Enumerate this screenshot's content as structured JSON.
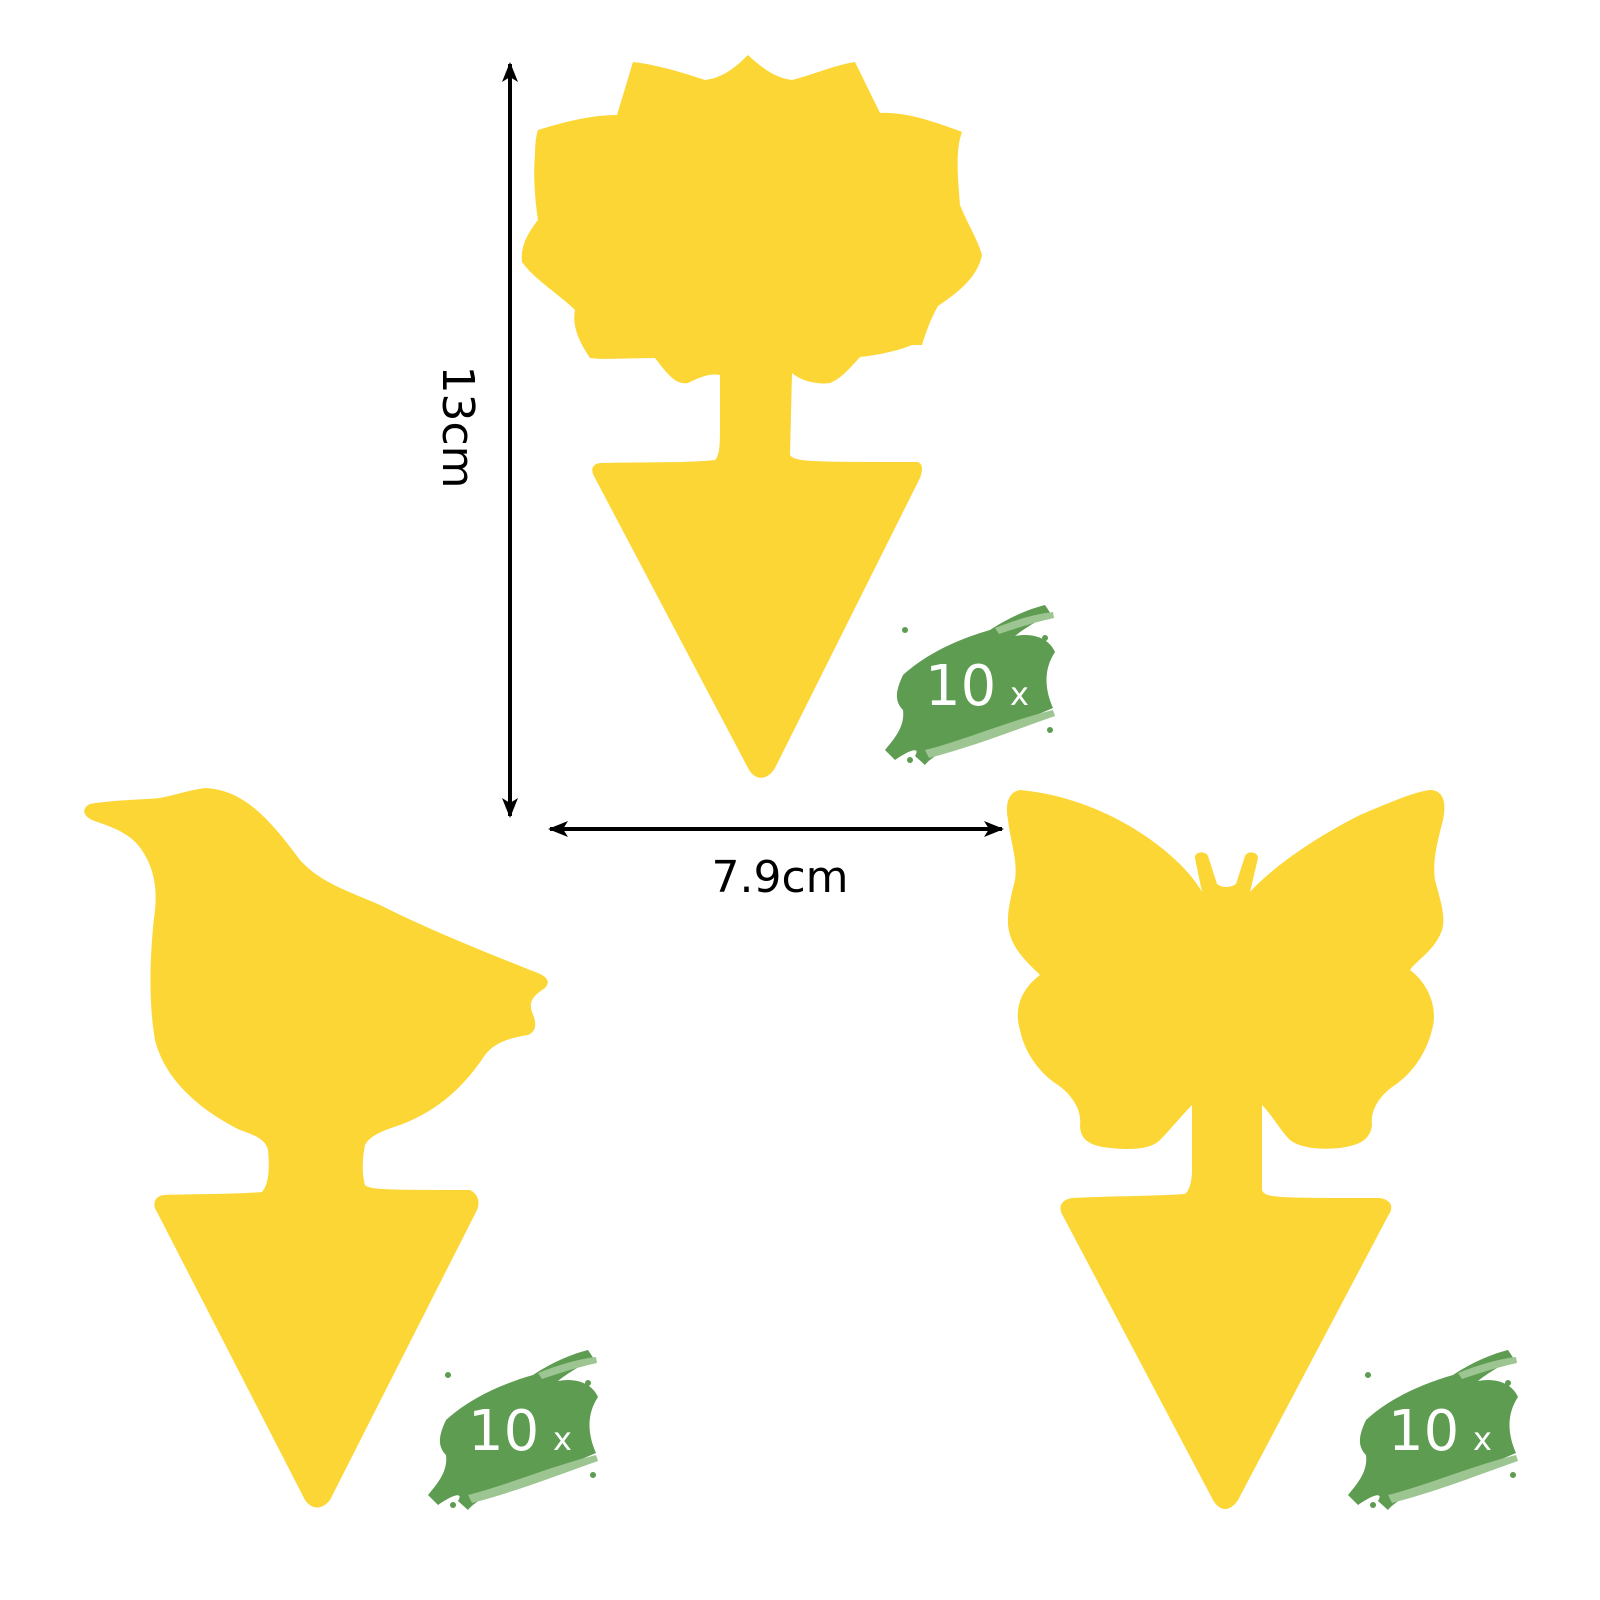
{
  "colors": {
    "trap": "#FCD634",
    "badge": "#5E9C51",
    "badge_light": "#9CC592",
    "dimension": "#000000"
  },
  "dimensions": {
    "height_label": "13cm",
    "width_label": "7.9cm"
  },
  "traps": [
    {
      "shape": "flower",
      "count": "10",
      "count_unit": "x"
    },
    {
      "shape": "bird",
      "count": "10",
      "count_unit": "x"
    },
    {
      "shape": "butterfly",
      "count": "10",
      "count_unit": "x"
    }
  ]
}
